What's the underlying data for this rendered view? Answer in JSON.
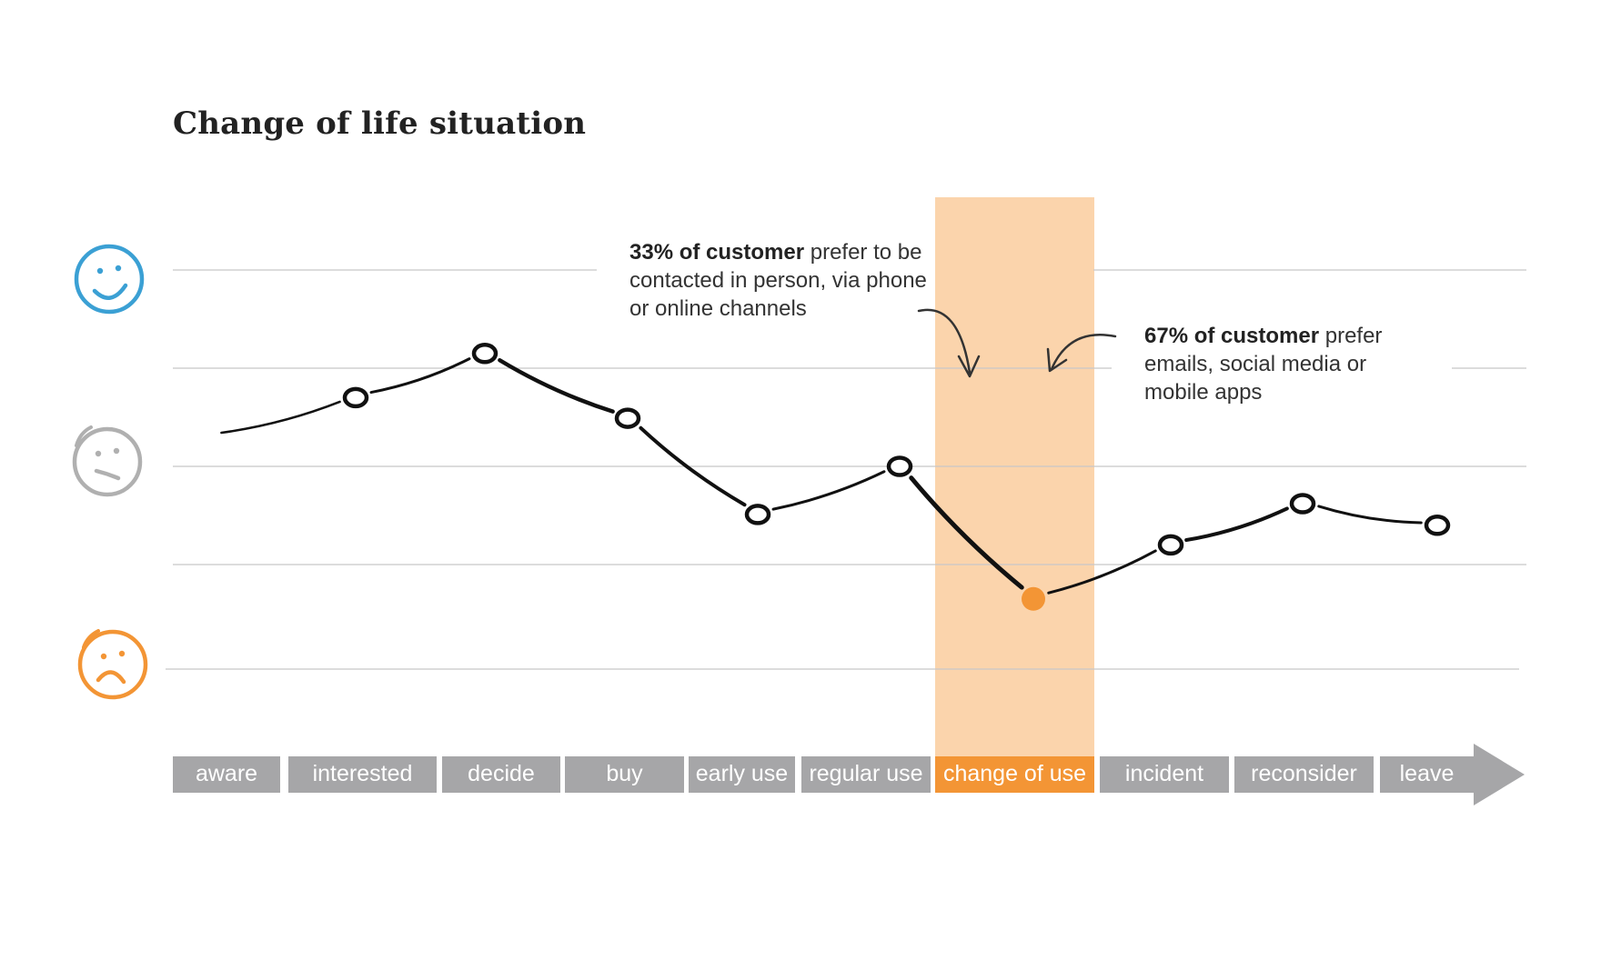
{
  "title": "Change of life situation",
  "annotations": [
    {
      "bold": "33% of customer",
      "text": " prefer to be contacted in person, via phone or online channels"
    },
    {
      "bold": "67% of customer",
      "text": " prefer emails, social media or mobile apps"
    }
  ],
  "faces": [
    {
      "name": "happy-face-icon",
      "color": "#3ba0d4"
    },
    {
      "name": "neutral-face-icon",
      "color": "#b0b0b0"
    },
    {
      "name": "sad-face-icon",
      "color": "#f39535"
    }
  ],
  "colors": {
    "highlight_band": "#fbd4ac",
    "highlight": "#f39535",
    "stage_bar": "#a6a6a8",
    "line": "#111111",
    "grid": "#c8c8c8"
  },
  "chart_data": {
    "type": "line",
    "categories": [
      "aware",
      "interested",
      "decide",
      "buy",
      "early use",
      "regular use",
      "change of use",
      "incident",
      "reconsider",
      "leave"
    ],
    "values": [
      0.3,
      0.7,
      1.15,
      0.49,
      -0.49,
      0,
      -1.35,
      -0.8,
      -0.38,
      -0.6
    ],
    "highlight_category": "change of use",
    "ylim": [
      -2.05,
      2.0
    ],
    "grid": true
  }
}
